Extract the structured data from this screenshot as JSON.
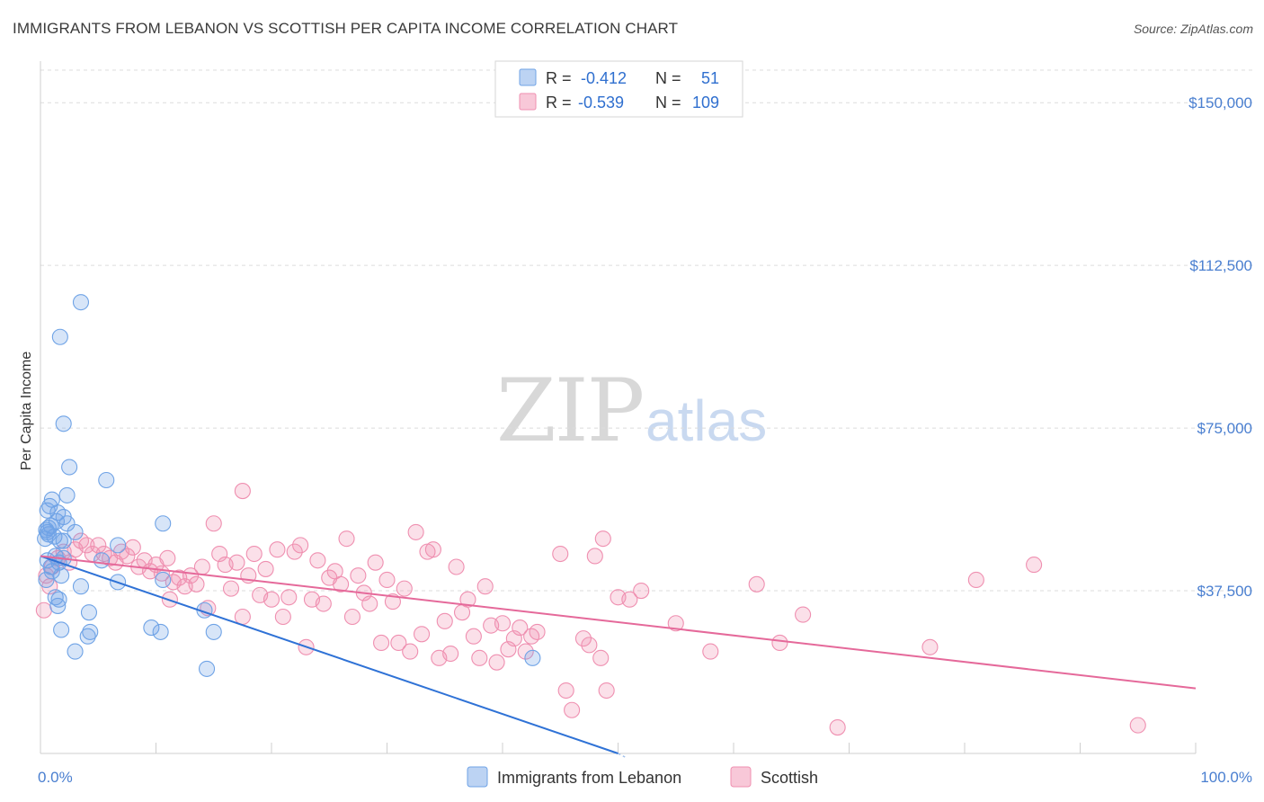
{
  "header": {
    "title": "IMMIGRANTS FROM LEBANON VS SCOTTISH PER CAPITA INCOME CORRELATION CHART",
    "source": "Source: ZipAtlas.com"
  },
  "watermark": {
    "zip": "ZIP",
    "atlas": "atlas"
  },
  "legend": {
    "r_label": "R =",
    "n_label": "N =",
    "rows": [
      {
        "r": "-0.412",
        "n": "51",
        "color": "#6fa3e6"
      },
      {
        "r": "-0.539",
        "n": "109",
        "color": "#ef8fb0"
      }
    ]
  },
  "chart_data": {
    "type": "scatter",
    "xlabel": "",
    "ylabel": "Per Capita Income",
    "xlim": [
      0,
      100
    ],
    "ylim": [
      0,
      157500
    ],
    "x_tick_labels": [
      "0.0%",
      "100.0%"
    ],
    "y_ticks": [
      37500,
      75000,
      112500,
      150000
    ],
    "y_tick_labels": [
      "$37,500",
      "$75,000",
      "$112,500",
      "$150,000"
    ],
    "grid": "horizontal dashed",
    "legend_position": "bottom-center",
    "series": [
      {
        "name": "Immigrants from Lebanon",
        "color": "#6fa3e6",
        "trend": {
          "x": [
            0,
            50
          ],
          "y": [
            45500,
            0
          ]
        },
        "points": [
          [
            3.5,
            104000
          ],
          [
            1.7,
            96000
          ],
          [
            2.0,
            76000
          ],
          [
            2.5,
            66000
          ],
          [
            5.7,
            63000
          ],
          [
            2.3,
            59500
          ],
          [
            1.0,
            58500
          ],
          [
            0.8,
            57000
          ],
          [
            0.6,
            56000
          ],
          [
            1.5,
            55500
          ],
          [
            2.0,
            54500
          ],
          [
            1.4,
            53500
          ],
          [
            2.3,
            53000
          ],
          [
            0.9,
            52500
          ],
          [
            0.7,
            52000
          ],
          [
            0.5,
            51500
          ],
          [
            0.6,
            51000
          ],
          [
            3.0,
            51000
          ],
          [
            1.2,
            50000
          ],
          [
            0.4,
            49500
          ],
          [
            1.7,
            49000
          ],
          [
            2.0,
            49000
          ],
          [
            0.7,
            50500
          ],
          [
            6.7,
            48000
          ],
          [
            1.3,
            45500
          ],
          [
            2.0,
            45000
          ],
          [
            0.6,
            44500
          ],
          [
            5.3,
            44500
          ],
          [
            1.6,
            44000
          ],
          [
            0.9,
            43000
          ],
          [
            1.0,
            42000
          ],
          [
            1.8,
            41000
          ],
          [
            0.5,
            40000
          ],
          [
            6.7,
            39500
          ],
          [
            3.5,
            38500
          ],
          [
            1.3,
            36000
          ],
          [
            1.6,
            35500
          ],
          [
            1.5,
            34000
          ],
          [
            10.6,
            53000
          ],
          [
            10.6,
            40000
          ],
          [
            14.2,
            33000
          ],
          [
            4.2,
            32500
          ],
          [
            1.8,
            28500
          ],
          [
            4.3,
            28000
          ],
          [
            4.1,
            27000
          ],
          [
            9.6,
            29000
          ],
          [
            10.4,
            28000
          ],
          [
            15.0,
            28000
          ],
          [
            3.0,
            23500
          ],
          [
            14.4,
            19500
          ],
          [
            42.6,
            22000
          ]
        ]
      },
      {
        "name": "Scottish",
        "color": "#ef8fb0",
        "trend": {
          "x": [
            0,
            100
          ],
          "y": [
            45500,
            15000
          ]
        },
        "points": [
          [
            0.3,
            33000
          ],
          [
            0.8,
            38500
          ],
          [
            0.5,
            41000
          ],
          [
            1.0,
            43000
          ],
          [
            1.5,
            45000
          ],
          [
            2.0,
            46500
          ],
          [
            2.5,
            44000
          ],
          [
            3.0,
            47000
          ],
          [
            3.5,
            49000
          ],
          [
            4.0,
            48000
          ],
          [
            4.5,
            46000
          ],
          [
            5.0,
            48000
          ],
          [
            5.5,
            46000
          ],
          [
            6.0,
            45000
          ],
          [
            6.5,
            44000
          ],
          [
            7.0,
            46500
          ],
          [
            7.5,
            45500
          ],
          [
            8.0,
            47500
          ],
          [
            8.5,
            43000
          ],
          [
            9.0,
            44500
          ],
          [
            9.5,
            42000
          ],
          [
            10.0,
            43500
          ],
          [
            10.5,
            41500
          ],
          [
            11.0,
            45000
          ],
          [
            11.5,
            39500
          ],
          [
            11.2,
            35500
          ],
          [
            12.0,
            40500
          ],
          [
            12.5,
            38500
          ],
          [
            13.0,
            41000
          ],
          [
            13.5,
            39000
          ],
          [
            14.0,
            43000
          ],
          [
            14.5,
            33500
          ],
          [
            15.0,
            53000
          ],
          [
            15.5,
            46000
          ],
          [
            16.0,
            43500
          ],
          [
            16.5,
            38000
          ],
          [
            17.0,
            44000
          ],
          [
            17.5,
            31500
          ],
          [
            17.5,
            60500
          ],
          [
            18.0,
            41000
          ],
          [
            18.5,
            46000
          ],
          [
            19.0,
            36500
          ],
          [
            19.5,
            42500
          ],
          [
            20.0,
            35500
          ],
          [
            20.5,
            47000
          ],
          [
            21.0,
            31500
          ],
          [
            21.5,
            36000
          ],
          [
            22.0,
            46500
          ],
          [
            22.5,
            48000
          ],
          [
            23.0,
            24500
          ],
          [
            23.5,
            35500
          ],
          [
            24.0,
            44500
          ],
          [
            24.5,
            34500
          ],
          [
            25.0,
            40500
          ],
          [
            25.5,
            42000
          ],
          [
            26.0,
            39000
          ],
          [
            26.5,
            49500
          ],
          [
            27.0,
            31500
          ],
          [
            27.5,
            41000
          ],
          [
            28.0,
            37000
          ],
          [
            28.5,
            34500
          ],
          [
            29.0,
            44000
          ],
          [
            29.5,
            25500
          ],
          [
            30.0,
            40000
          ],
          [
            30.5,
            35000
          ],
          [
            31.0,
            25500
          ],
          [
            31.5,
            38000
          ],
          [
            32.0,
            23500
          ],
          [
            32.5,
            51000
          ],
          [
            33.0,
            27500
          ],
          [
            33.5,
            46500
          ],
          [
            34.0,
            47000
          ],
          [
            34.5,
            22000
          ],
          [
            35.0,
            30500
          ],
          [
            35.5,
            23000
          ],
          [
            36.0,
            43000
          ],
          [
            36.5,
            32500
          ],
          [
            37.0,
            35500
          ],
          [
            37.5,
            27000
          ],
          [
            38.0,
            22000
          ],
          [
            38.5,
            38500
          ],
          [
            39.0,
            29500
          ],
          [
            39.5,
            21000
          ],
          [
            40.0,
            30000
          ],
          [
            40.5,
            24000
          ],
          [
            41.0,
            26500
          ],
          [
            41.5,
            29000
          ],
          [
            42.0,
            23500
          ],
          [
            42.5,
            27000
          ],
          [
            43.0,
            28000
          ],
          [
            45.0,
            46000
          ],
          [
            45.5,
            14500
          ],
          [
            46.0,
            10000
          ],
          [
            47.0,
            26500
          ],
          [
            47.5,
            25000
          ],
          [
            48.0,
            45500
          ],
          [
            48.5,
            22000
          ],
          [
            48.7,
            49500
          ],
          [
            49.0,
            14500
          ],
          [
            50.0,
            36000
          ],
          [
            51.0,
            35500
          ],
          [
            52.0,
            37500
          ],
          [
            55.0,
            30000
          ],
          [
            58.0,
            23500
          ],
          [
            62.0,
            39000
          ],
          [
            64.0,
            25500
          ],
          [
            66.0,
            32000
          ],
          [
            69.0,
            6000
          ],
          [
            77.0,
            24500
          ],
          [
            81.0,
            40000
          ],
          [
            86.0,
            43500
          ],
          [
            95.0,
            6500
          ]
        ]
      }
    ]
  }
}
